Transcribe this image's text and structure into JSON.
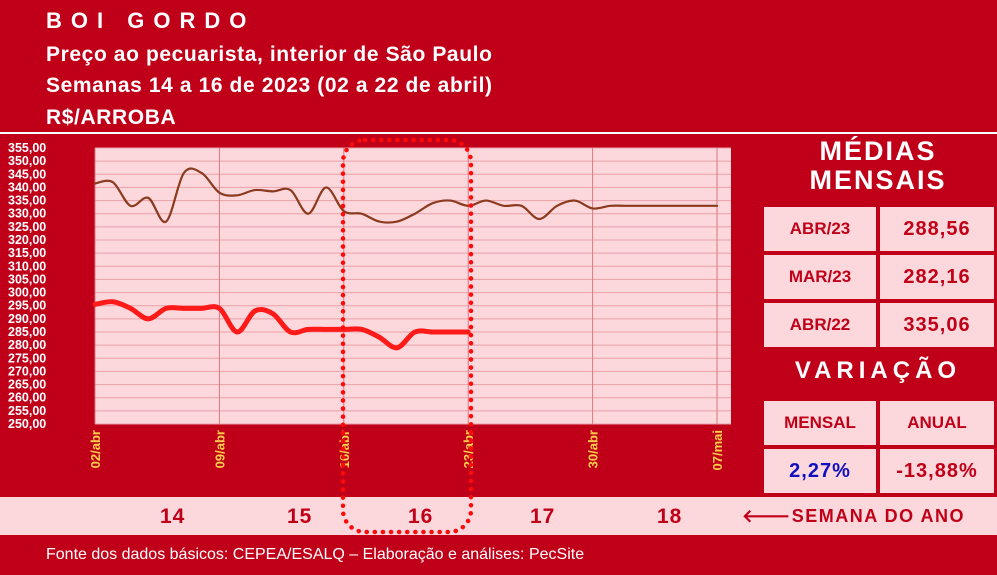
{
  "header": {
    "title": "BOI GORDO",
    "line1": "Preço ao pecuarista, interior de São Paulo",
    "line2": "Semanas 14 a 16 de 2023 (02 a 22 de abril)",
    "line3": "R$/ARROBA"
  },
  "chart_data": {
    "type": "line",
    "ylim": [
      250,
      355
    ],
    "ystep": 5,
    "y_tick_labels": [
      "355,00",
      "350,00",
      "345,00",
      "340,00",
      "335,00",
      "330,00",
      "325,00",
      "320,00",
      "315,00",
      "310,00",
      "305,00",
      "300,00",
      "295,00",
      "290,00",
      "285,00",
      "280,00",
      "275,00",
      "270,00",
      "265,00",
      "260,00",
      "255,00",
      "250,00"
    ],
    "x_tick_labels": [
      "02/abr",
      "09/abr",
      "16/abr",
      "23/abr",
      "30/abr",
      "07/mai"
    ],
    "x_range": [
      0,
      35
    ],
    "grid": true,
    "highlight_range": [
      14,
      21
    ],
    "series": [
      {
        "color": "#8b3a1e",
        "x": [
          0,
          1,
          2,
          3,
          4,
          5,
          6,
          7,
          8,
          9,
          10,
          11,
          12,
          13,
          14,
          15,
          16,
          17,
          18,
          19,
          20,
          21,
          22,
          23,
          24,
          25,
          26,
          27,
          28,
          29,
          30,
          31,
          32,
          33,
          34,
          35
        ],
        "values": [
          341.5,
          342,
          333,
          336,
          327,
          345.5,
          345.5,
          338,
          337,
          339,
          338.5,
          339,
          330,
          340,
          331,
          330,
          327,
          327,
          330,
          334,
          335,
          333,
          335,
          333,
          333,
          328,
          333,
          335,
          332,
          333,
          333,
          333,
          333,
          333,
          333,
          333
        ]
      },
      {
        "color": "#ff1a1a",
        "x": [
          0,
          1,
          2,
          3,
          4,
          5,
          6,
          7,
          8,
          9,
          10,
          11,
          12,
          13,
          14,
          15,
          16,
          17,
          18,
          19,
          20,
          21
        ],
        "values": [
          295.5,
          296.5,
          294,
          290,
          294,
          294,
          294,
          294,
          285,
          293,
          292,
          285,
          286,
          286,
          286,
          286,
          283,
          279,
          285,
          285,
          285,
          285
        ]
      }
    ]
  },
  "summary": {
    "medias_title_1": "MÉDIAS",
    "medias_title_2": "MENSAIS",
    "rows": [
      {
        "label": "ABR/23",
        "value": "288,56"
      },
      {
        "label": "MAR/23",
        "value": "282,16"
      },
      {
        "label": "ABR/22",
        "value": "335,06"
      }
    ],
    "variacao_title": "VARIAÇÃO",
    "mensal_label": "MENSAL",
    "anual_label": "ANUAL",
    "mensal_value": "2,27%",
    "anual_value": "-13,88%"
  },
  "weeks": {
    "items": [
      "14",
      "15",
      "16",
      "17",
      "18"
    ],
    "label": "SEMANA DO ANO",
    "arrow_icon": "arrow-left-icon"
  },
  "footer": {
    "source": "Fonte dos dados básicos: CEPEA/ESALQ – Elaboração e análises: PecSite"
  }
}
